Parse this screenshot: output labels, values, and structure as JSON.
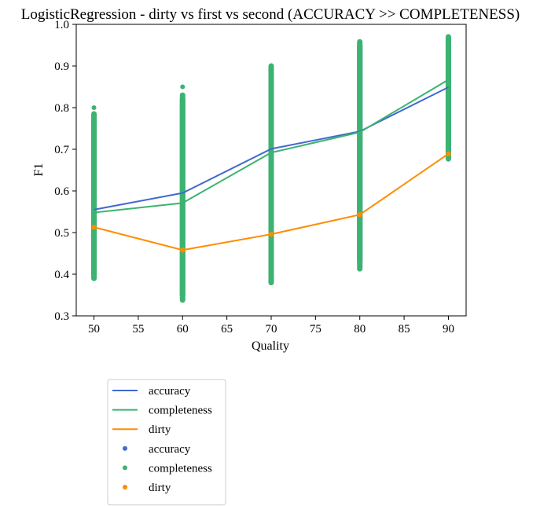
{
  "chart_data": {
    "type": "line",
    "title": "LogisticRegression - dirty vs first vs second (ACCURACY >> COMPLETENESS)",
    "xlabel": "Quality",
    "ylabel": "F1",
    "xlim": [
      48,
      92
    ],
    "ylim": [
      0.3,
      1.0
    ],
    "x_ticks": [
      50,
      55,
      60,
      65,
      70,
      75,
      80,
      85,
      90
    ],
    "y_ticks": [
      0.3,
      0.4,
      0.5,
      0.6,
      0.7,
      0.8,
      0.9,
      1.0
    ],
    "grid": false,
    "legend_position": "below-left",
    "x": [
      50,
      60,
      70,
      80,
      90
    ],
    "series": [
      {
        "name": "accuracy",
        "kind": "line",
        "color": "#4169cf",
        "values": [
          0.555,
          0.595,
          0.701,
          0.743,
          0.849
        ]
      },
      {
        "name": "completeness",
        "kind": "line",
        "color": "#3cb371",
        "values": [
          0.548,
          0.571,
          0.692,
          0.741,
          0.867
        ]
      },
      {
        "name": "dirty",
        "kind": "line",
        "color": "#ff8c00",
        "values": [
          0.513,
          0.458,
          0.496,
          0.543,
          0.689
        ]
      }
    ],
    "scatter": [
      {
        "name": "accuracy",
        "kind": "scatter",
        "color": "#4169cf",
        "ranges": [
          [
            50,
            0.4,
            0.77
          ],
          [
            60,
            0.35,
            0.82
          ],
          [
            70,
            0.385,
            0.89
          ],
          [
            80,
            0.43,
            0.95
          ],
          [
            90,
            0.69,
            0.965
          ]
        ]
      },
      {
        "name": "completeness",
        "kind": "scatter",
        "color": "#3cb371",
        "ranges": [
          [
            50,
            0.39,
            0.785
          ],
          [
            60,
            0.338,
            0.83
          ],
          [
            70,
            0.38,
            0.9
          ],
          [
            80,
            0.413,
            0.958
          ],
          [
            90,
            0.677,
            0.97
          ]
        ],
        "outliers": [
          [
            50,
            0.8
          ],
          [
            60,
            0.85
          ]
        ]
      },
      {
        "name": "dirty",
        "kind": "scatter",
        "color": "#ff8c00",
        "points": [
          [
            50,
            0.513
          ],
          [
            60,
            0.458
          ],
          [
            70,
            0.496
          ],
          [
            80,
            0.543
          ],
          [
            90,
            0.689
          ]
        ]
      }
    ]
  }
}
